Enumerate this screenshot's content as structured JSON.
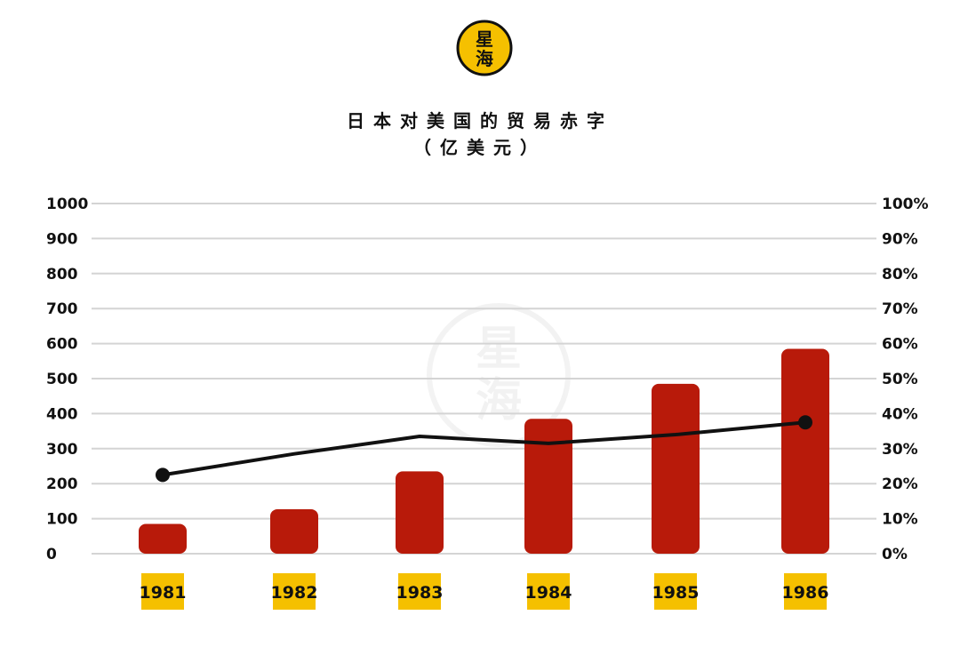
{
  "logo": {
    "text": "星海",
    "color": "#f5c000"
  },
  "title": {
    "line1": "日本对美国的贸易赤字",
    "line2": "（亿美元）"
  },
  "chart_data": {
    "type": "bar",
    "categories": [
      "1981",
      "1982",
      "1983",
      "1984",
      "1985",
      "1986"
    ],
    "series": [
      {
        "type": "bar",
        "axis": "left",
        "values": [
          85,
          127,
          235,
          385,
          485,
          585
        ],
        "color": "#b81a0a"
      },
      {
        "type": "line",
        "axis": "right",
        "values": [
          22.5,
          28.5,
          33.5,
          31.5,
          34,
          37.5
        ],
        "color": "#111111"
      }
    ],
    "left_axis": {
      "min": 0,
      "max": 1000,
      "ticks": [
        "0",
        "100",
        "200",
        "300",
        "400",
        "500",
        "600",
        "700",
        "800",
        "900",
        "1000"
      ]
    },
    "right_axis": {
      "min": 0,
      "max": 100,
      "ticks": [
        "0%",
        "10%",
        "20%",
        "30%",
        "40%",
        "50%",
        "60%",
        "70%",
        "80%",
        "90%",
        "100%"
      ]
    },
    "grid": true,
    "category_label_bg": "#f5c000"
  }
}
